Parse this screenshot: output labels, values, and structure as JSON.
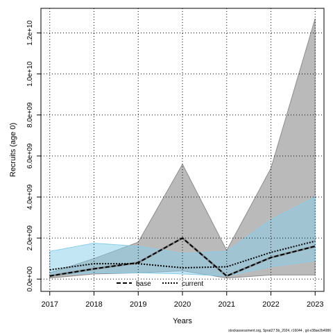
{
  "chart_data": {
    "type": "line",
    "xlabel": "Years",
    "ylabel": "Recruits (age 0)",
    "x": [
      2017,
      2018,
      2019,
      2020,
      2021,
      2022,
      2023
    ],
    "x_tick_labels": [
      "2017",
      "2018",
      "2019",
      "2020",
      "2021",
      "2022",
      "2023"
    ],
    "y_ticks": [
      0,
      2000000000.0,
      4000000000.0,
      6000000000.0,
      8000000000.0,
      10000000000.0,
      12000000000.0
    ],
    "y_tick_labels": [
      "0.0e+00",
      "2.0e+09",
      "4.0e+09",
      "6.0e+09",
      "8.0e+09",
      "1.0e+10",
      "1.2e+10"
    ],
    "xlim": [
      2016.8,
      2023.2
    ],
    "ylim": [
      -600000000.0,
      13200000000.0
    ],
    "grid": true,
    "legend_position": "bottom-center",
    "series": [
      {
        "name": "base",
        "color": "#000000",
        "line_style": "dashed",
        "values": [
          150000000.0,
          500000000.0,
          800000000.0,
          2000000000.0,
          150000000.0,
          1050000000.0,
          1600000000.0
        ],
        "lower": [
          50000000.0,
          250000000.0,
          300000000.0,
          400000000.0,
          50000000.0,
          200000000.0,
          200000000.0
        ],
        "upper": [
          300000000.0,
          1000000000.0,
          1800000000.0,
          5600000000.0,
          1400000000.0,
          5400000000.0,
          12700000000.0
        ],
        "band_color": "#8c8c8c"
      },
      {
        "name": "current",
        "color": "#000000",
        "line_style": "dotted",
        "values": [
          450000000.0,
          750000000.0,
          750000000.0,
          550000000.0,
          600000000.0,
          1300000000.0,
          1850000000.0
        ],
        "lower": [
          200000000.0,
          300000000.0,
          300000000.0,
          250000000.0,
          150000000.0,
          600000000.0,
          900000000.0
        ],
        "upper": [
          1350000000.0,
          1750000000.0,
          1600000000.0,
          1250000000.0,
          1350000000.0,
          2900000000.0,
          4000000000.0
        ],
        "band_color": "#87ceeb"
      }
    ]
  },
  "footer": {
    "credit": "stockassessment.org, Sprat27.5b_2024, r16044 , git e38ae2b4986"
  }
}
